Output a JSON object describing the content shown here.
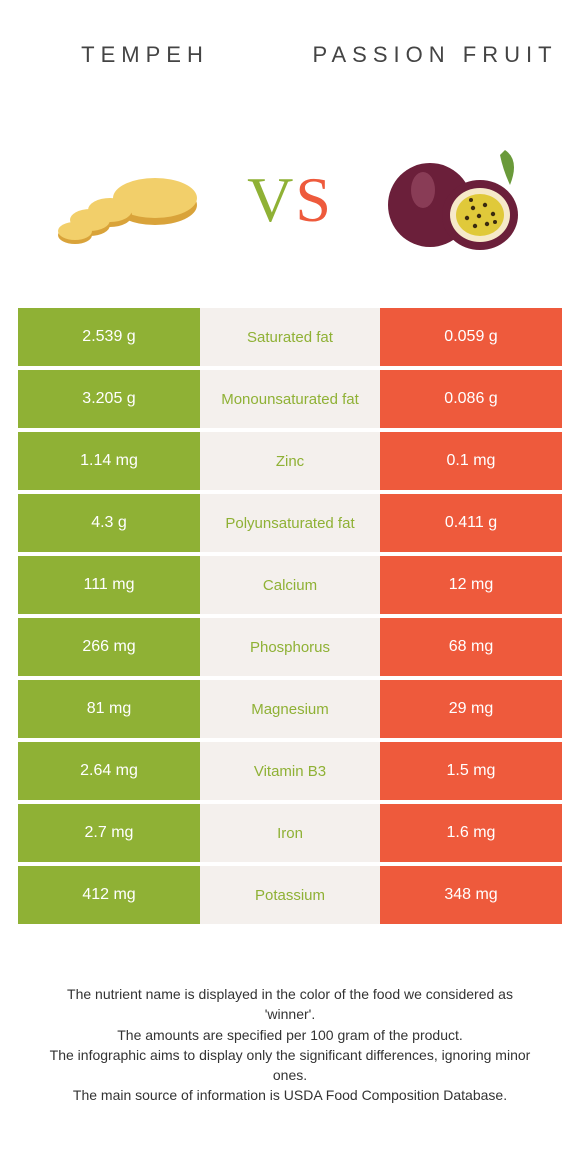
{
  "left_title": "TEMPEH",
  "right_title": "PASSION FRUIT",
  "vs_v": "V",
  "vs_s": "S",
  "colors": {
    "left": "#8fb135",
    "right": "#ee5a3c",
    "mid_bg": "#f4f0ed",
    "page_bg": "#ffffff"
  },
  "rows": [
    {
      "left": "2.539 g",
      "label": "Saturated fat",
      "right": "0.059 g",
      "winner": "left"
    },
    {
      "left": "3.205 g",
      "label": "Monounsaturated fat",
      "right": "0.086 g",
      "winner": "left"
    },
    {
      "left": "1.14 mg",
      "label": "Zinc",
      "right": "0.1 mg",
      "winner": "left"
    },
    {
      "left": "4.3 g",
      "label": "Polyunsaturated fat",
      "right": "0.411 g",
      "winner": "left"
    },
    {
      "left": "111 mg",
      "label": "Calcium",
      "right": "12 mg",
      "winner": "left"
    },
    {
      "left": "266 mg",
      "label": "Phosphorus",
      "right": "68 mg",
      "winner": "left"
    },
    {
      "left": "81 mg",
      "label": "Magnesium",
      "right": "29 mg",
      "winner": "left"
    },
    {
      "left": "2.64 mg",
      "label": "Vitamin B3",
      "right": "1.5 mg",
      "winner": "left"
    },
    {
      "left": "2.7 mg",
      "label": "Iron",
      "right": "1.6 mg",
      "winner": "left"
    },
    {
      "left": "412 mg",
      "label": "Potassium",
      "right": "348 mg",
      "winner": "left"
    }
  ],
  "footnotes": [
    "The nutrient name is displayed in the color of the food we considered as 'winner'.",
    "The amounts are specified per 100 gram of the product.",
    "The infographic aims to display only the significant differences, ignoring minor ones.",
    "The main source of information is USDA Food Composition Database."
  ]
}
